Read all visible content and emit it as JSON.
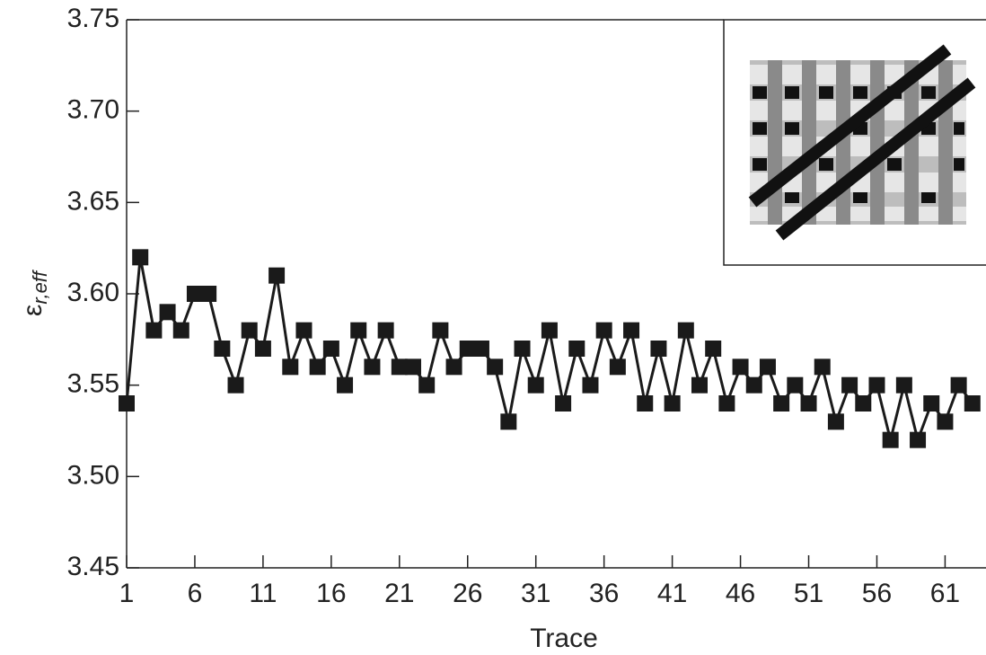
{
  "chart_data": {
    "type": "line",
    "x_label": "Trace",
    "y_label": {
      "symbol": "ε",
      "subscript": "r,eff"
    },
    "x": [
      1,
      2,
      3,
      4,
      5,
      6,
      7,
      8,
      9,
      10,
      11,
      12,
      13,
      14,
      15,
      16,
      17,
      18,
      19,
      20,
      21,
      22,
      23,
      24,
      25,
      26,
      27,
      28,
      29,
      30,
      31,
      32,
      33,
      34,
      35,
      36,
      37,
      38,
      39,
      40,
      41,
      42,
      43,
      44,
      45,
      46,
      47,
      48,
      49,
      50,
      51,
      52,
      53,
      54,
      55,
      56,
      57,
      58,
      59,
      60,
      61,
      62,
      63
    ],
    "series": [
      {
        "color": "#1a1a1a",
        "values": [
          3.54,
          3.62,
          3.58,
          3.59,
          3.58,
          3.6,
          3.6,
          3.57,
          3.55,
          3.58,
          3.57,
          3.61,
          3.56,
          3.58,
          3.56,
          3.57,
          3.55,
          3.58,
          3.56,
          3.58,
          3.56,
          3.56,
          3.55,
          3.58,
          3.56,
          3.57,
          3.57,
          3.56,
          3.53,
          3.57,
          3.55,
          3.58,
          3.54,
          3.57,
          3.55,
          3.58,
          3.56,
          3.58,
          3.54,
          3.57,
          3.54,
          3.58,
          3.55,
          3.57,
          3.54,
          3.56,
          3.55,
          3.56,
          3.54,
          3.55,
          3.54,
          3.56,
          3.53,
          3.55,
          3.54,
          3.55,
          3.52,
          3.55,
          3.52,
          3.54,
          3.53,
          3.55,
          3.54
        ]
      }
    ],
    "xlim": [
      1,
      64
    ],
    "xticks": [
      1,
      6,
      11,
      16,
      21,
      26,
      31,
      36,
      41,
      46,
      51,
      56,
      61
    ],
    "ylim": [
      3.45,
      3.75
    ],
    "yticks": [
      {
        "value": 3.45,
        "label": "3.45"
      },
      {
        "value": 3.5,
        "label": "3.50"
      },
      {
        "value": 3.55,
        "label": "3.55"
      },
      {
        "value": 3.6,
        "label": "3.60"
      },
      {
        "value": 3.65,
        "label": "3.65"
      },
      {
        "value": 3.7,
        "label": "3.70"
      },
      {
        "value": 3.75,
        "label": "3.75"
      }
    ],
    "marker": "square"
  }
}
